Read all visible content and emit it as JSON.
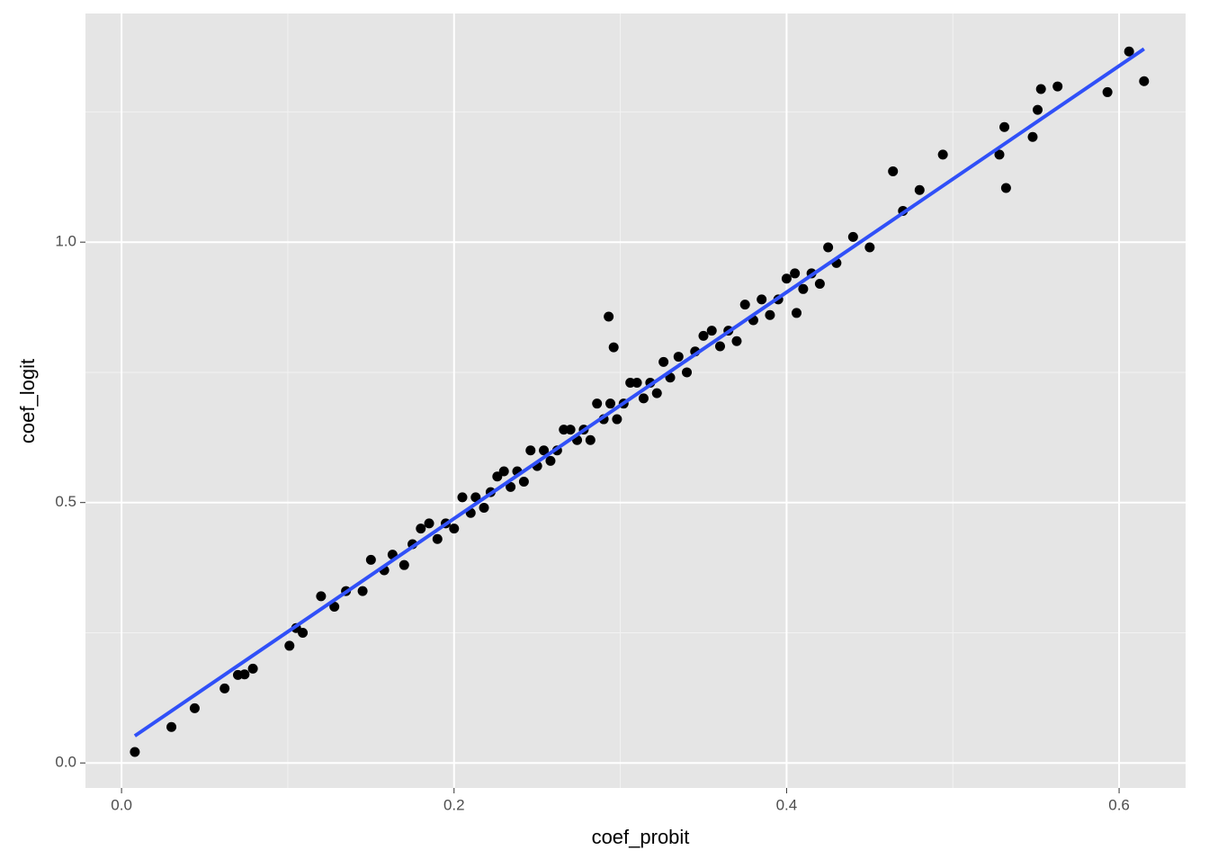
{
  "chart_data": {
    "type": "scatter",
    "x_label": "coef_probit",
    "y_label": "coef_logit",
    "xlim": [
      -0.0217,
      0.64
    ],
    "ylim": [
      -0.048,
      1.439
    ],
    "xticks": [
      {
        "value": 0,
        "label": "0.0"
      },
      0.2,
      0.4,
      0.6
    ],
    "yticks": [
      {
        "value": 0,
        "label": "0.0"
      },
      0.5,
      {
        "value": 1,
        "label": "1.0"
      }
    ],
    "xminor": [
      0.1,
      0.3,
      0.5
    ],
    "yminor": [
      0.25,
      0.75,
      1.25
    ],
    "grid": true,
    "point_color": "#000000",
    "x": [
      0.008,
      0.03,
      0.044,
      0.062,
      0.07,
      0.074,
      0.079,
      0.101,
      0.105,
      0.109,
      0.293,
      0.296,
      0.406,
      0.606,
      0.615,
      0.593,
      0.553,
      0.563,
      0.551,
      0.548,
      0.528,
      0.531,
      0.494,
      0.464,
      0.532,
      0.12,
      0.128,
      0.135,
      0.145,
      0.15,
      0.158,
      0.163,
      0.17,
      0.175,
      0.18,
      0.185,
      0.19,
      0.195,
      0.2,
      0.205,
      0.21,
      0.213,
      0.218,
      0.222,
      0.226,
      0.23,
      0.234,
      0.238,
      0.242,
      0.246,
      0.25,
      0.254,
      0.258,
      0.262,
      0.266,
      0.27,
      0.274,
      0.278,
      0.282,
      0.286,
      0.29,
      0.294,
      0.298,
      0.302,
      0.306,
      0.31,
      0.314,
      0.318,
      0.322,
      0.326,
      0.33,
      0.335,
      0.34,
      0.345,
      0.35,
      0.355,
      0.36,
      0.365,
      0.37,
      0.375,
      0.38,
      0.385,
      0.39,
      0.395,
      0.4,
      0.405,
      0.41,
      0.415,
      0.42,
      0.425,
      0.43,
      0.44,
      0.45,
      0.47,
      0.48
    ],
    "y": [
      0.021,
      0.069,
      0.105,
      0.143,
      0.169,
      0.17,
      0.181,
      0.225,
      0.259,
      0.25,
      0.857,
      0.798,
      0.864,
      1.366,
      1.309,
      1.288,
      1.294,
      1.299,
      1.254,
      1.202,
      1.168,
      1.221,
      1.168,
      1.136,
      1.104,
      0.32,
      0.3,
      0.33,
      0.33,
      0.39,
      0.37,
      0.4,
      0.38,
      0.42,
      0.45,
      0.46,
      0.43,
      0.46,
      0.45,
      0.51,
      0.48,
      0.51,
      0.49,
      0.52,
      0.55,
      0.56,
      0.53,
      0.56,
      0.54,
      0.6,
      0.57,
      0.6,
      0.58,
      0.6,
      0.64,
      0.64,
      0.62,
      0.64,
      0.62,
      0.69,
      0.66,
      0.69,
      0.66,
      0.69,
      0.73,
      0.73,
      0.7,
      0.73,
      0.71,
      0.77,
      0.74,
      0.78,
      0.75,
      0.79,
      0.82,
      0.83,
      0.8,
      0.83,
      0.81,
      0.88,
      0.85,
      0.89,
      0.86,
      0.89,
      0.93,
      0.94,
      0.91,
      0.94,
      0.92,
      0.99,
      0.96,
      1.01,
      0.99,
      1.06,
      1.1
    ],
    "fit_line": {
      "color": "#3050f8",
      "x": [
        0.008,
        0.615
      ],
      "y": [
        0.052,
        1.371
      ]
    }
  }
}
